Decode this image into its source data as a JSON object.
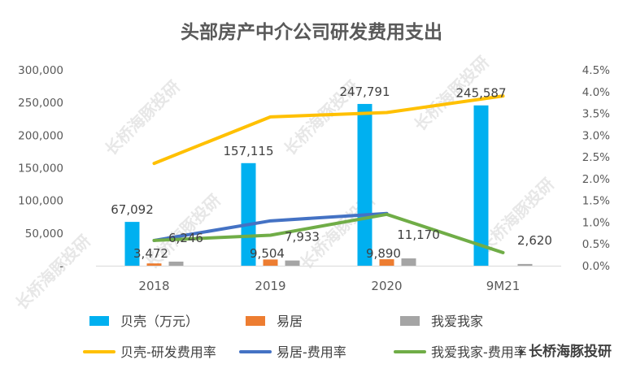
{
  "chart_data": {
    "type": "bar+line",
    "title": "头部房产中介公司研发费用支出",
    "categories": [
      "2018",
      "2019",
      "2020",
      "9M21"
    ],
    "left_axis": {
      "min": 0,
      "max": 300000,
      "step": 50000,
      "tick_labels": [
        "-",
        "50,000",
        "100,000",
        "150,000",
        "200,000",
        "250,000",
        "300,000"
      ]
    },
    "right_axis": {
      "min": 0,
      "max": 4.5,
      "step": 0.5,
      "tick_labels": [
        "0.0%",
        "0.5%",
        "1.0%",
        "1.5%",
        "2.0%",
        "2.5%",
        "3.0%",
        "3.5%",
        "4.0%",
        "4.5%"
      ]
    },
    "bar_series": [
      {
        "name": "贝壳（万元）",
        "color": "#00b0f0",
        "values": [
          67092,
          157115,
          247791,
          245587
        ],
        "labels": [
          "67,092",
          "157,115",
          "247,791",
          "245,587"
        ]
      },
      {
        "name": "易居",
        "color": "#ed7d31",
        "values": [
          3472,
          9504,
          9890,
          null
        ],
        "labels": [
          "3,472",
          "9,504",
          "9,890",
          null
        ]
      },
      {
        "name": "我爱我家",
        "color": "#a5a5a5",
        "values": [
          6246,
          7933,
          11170,
          2620
        ],
        "labels": [
          "6,246",
          "7,933",
          "11,170",
          "2,620"
        ]
      }
    ],
    "line_series": [
      {
        "name": "贝壳-研发费用率",
        "color": "#ffc000",
        "values": [
          2.35,
          3.42,
          3.52,
          3.9
        ]
      },
      {
        "name": "易居-费用率",
        "color": "#4472c4",
        "values": [
          0.58,
          1.03,
          1.2,
          null
        ]
      },
      {
        "name": "我爱我家-费用率",
        "color": "#70ad47",
        "values": [
          0.58,
          0.7,
          1.18,
          0.3
        ]
      }
    ],
    "legend_position": "bottom",
    "watermark": "长桥海豚投研"
  }
}
